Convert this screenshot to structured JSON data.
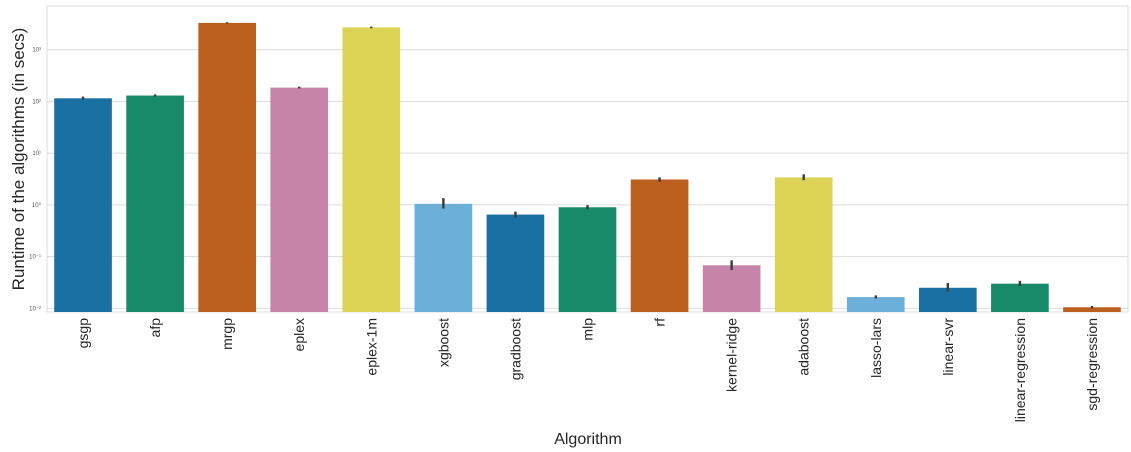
{
  "chart_data": {
    "type": "bar",
    "title": "",
    "xlabel": "Algorithm",
    "ylabel": "Runtime of the algorithms (in secs)",
    "yscale": "log",
    "ylim": [
      0.0085,
      7000
    ],
    "yticks": [
      {
        "value": 0.01,
        "label": "10⁻²"
      },
      {
        "value": 0.1,
        "label": "10⁻¹"
      },
      {
        "value": 1,
        "label": "10⁰"
      },
      {
        "value": 10,
        "label": "10¹"
      },
      {
        "value": 100,
        "label": "10²"
      },
      {
        "value": 1000,
        "label": "10³"
      }
    ],
    "grid": "horizontal",
    "categories": [
      "gsgp",
      "afp",
      "mrgp",
      "eplex",
      "eplex-1m",
      "xgboost",
      "gradboost",
      "mlp",
      "rf",
      "kernel-ridge",
      "adaboost",
      "lasso-lars",
      "linear-svr",
      "linear-regression",
      "sgd-regression"
    ],
    "values": [
      115,
      130,
      3300,
      185,
      2700,
      1.05,
      0.65,
      0.9,
      3.1,
      0.068,
      3.4,
      0.0165,
      0.025,
      0.03,
      0.0105
    ],
    "error_low": [
      108,
      124,
      3200,
      178,
      2600,
      0.85,
      0.57,
      0.82,
      2.8,
      0.055,
      3.0,
      0.0155,
      0.021,
      0.027,
      0.01
    ],
    "error_high": [
      124,
      137,
      3400,
      193,
      2800,
      1.35,
      0.74,
      0.99,
      3.4,
      0.085,
      3.9,
      0.0178,
      0.031,
      0.034,
      0.0111
    ],
    "colors": [
      "#1a6fa3",
      "#188a6a",
      "#bb5f1f",
      "#c584a8",
      "#dbd256",
      "#6cafd9",
      "#1a6fa3",
      "#188a6a",
      "#bb5f1f",
      "#c584a8",
      "#dbd256",
      "#6cafd9",
      "#1a6fa3",
      "#188a6a",
      "#bb5f1f"
    ]
  }
}
